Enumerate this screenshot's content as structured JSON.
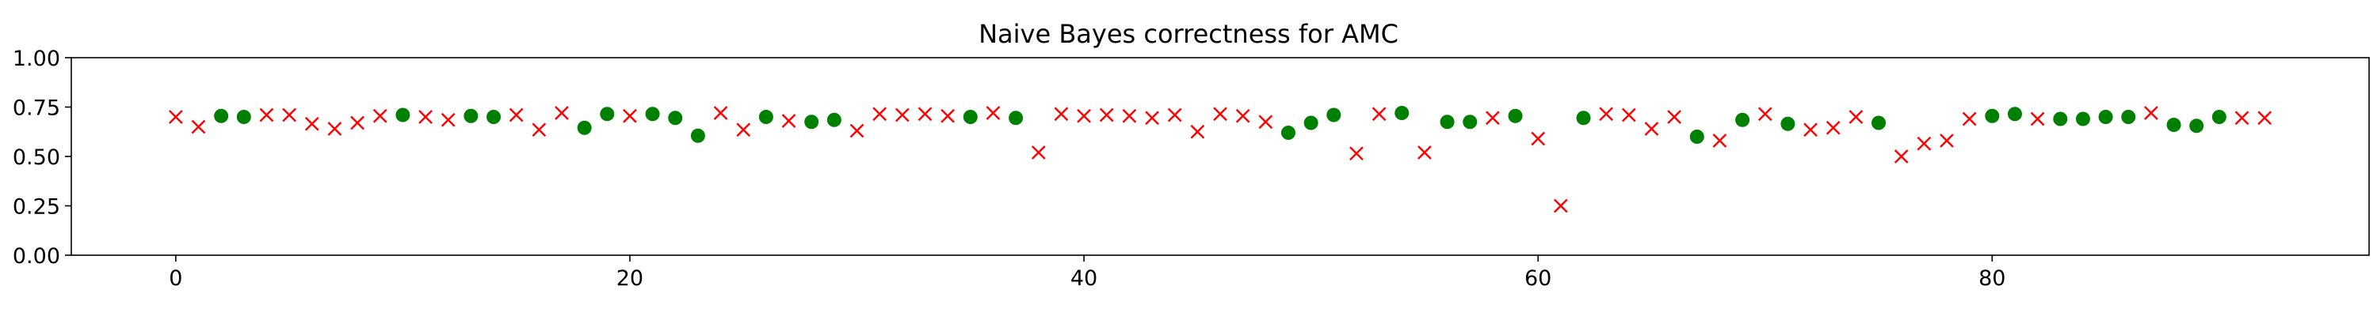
{
  "chart_data": {
    "type": "scatter",
    "title": "Naive Bayes correctness for AMC",
    "xlabel": "",
    "ylabel": "",
    "xlim": [
      -4.6,
      96.6
    ],
    "ylim": [
      0,
      1
    ],
    "x_ticks": [
      0,
      20,
      40,
      60,
      80
    ],
    "x_tick_labels": [
      "0",
      "20",
      "40",
      "60",
      "80"
    ],
    "y_ticks": [
      0,
      0.25,
      0.5,
      0.75,
      1.0
    ],
    "y_tick_labels": [
      "0.00",
      "0.25",
      "0.50",
      "0.75",
      "1.00"
    ],
    "grid": false,
    "legend": "none",
    "colors": {
      "correct": "#008000",
      "incorrect": "#ff0000"
    },
    "markers": {
      "correct": "circle",
      "incorrect": "x"
    },
    "points": [
      {
        "x": 0,
        "y": 0.7,
        "correct": false
      },
      {
        "x": 1,
        "y": 0.65,
        "correct": false
      },
      {
        "x": 2,
        "y": 0.705,
        "correct": true
      },
      {
        "x": 3,
        "y": 0.7,
        "correct": true
      },
      {
        "x": 4,
        "y": 0.71,
        "correct": false
      },
      {
        "x": 5,
        "y": 0.71,
        "correct": false
      },
      {
        "x": 6,
        "y": 0.665,
        "correct": false
      },
      {
        "x": 7,
        "y": 0.64,
        "correct": false
      },
      {
        "x": 8,
        "y": 0.67,
        "correct": false
      },
      {
        "x": 9,
        "y": 0.705,
        "correct": false
      },
      {
        "x": 10,
        "y": 0.71,
        "correct": true
      },
      {
        "x": 11,
        "y": 0.7,
        "correct": false
      },
      {
        "x": 12,
        "y": 0.685,
        "correct": false
      },
      {
        "x": 13,
        "y": 0.705,
        "correct": true
      },
      {
        "x": 14,
        "y": 0.7,
        "correct": true
      },
      {
        "x": 15,
        "y": 0.71,
        "correct": false
      },
      {
        "x": 16,
        "y": 0.635,
        "correct": false
      },
      {
        "x": 17,
        "y": 0.72,
        "correct": false
      },
      {
        "x": 18,
        "y": 0.645,
        "correct": true
      },
      {
        "x": 19,
        "y": 0.715,
        "correct": true
      },
      {
        "x": 20,
        "y": 0.705,
        "correct": false
      },
      {
        "x": 21,
        "y": 0.715,
        "correct": true
      },
      {
        "x": 22,
        "y": 0.695,
        "correct": true
      },
      {
        "x": 23,
        "y": 0.605,
        "correct": true
      },
      {
        "x": 24,
        "y": 0.72,
        "correct": false
      },
      {
        "x": 25,
        "y": 0.635,
        "correct": false
      },
      {
        "x": 26,
        "y": 0.7,
        "correct": true
      },
      {
        "x": 27,
        "y": 0.68,
        "correct": false
      },
      {
        "x": 28,
        "y": 0.675,
        "correct": true
      },
      {
        "x": 29,
        "y": 0.685,
        "correct": true
      },
      {
        "x": 30,
        "y": 0.63,
        "correct": false
      },
      {
        "x": 31,
        "y": 0.715,
        "correct": false
      },
      {
        "x": 32,
        "y": 0.71,
        "correct": false
      },
      {
        "x": 33,
        "y": 0.715,
        "correct": false
      },
      {
        "x": 34,
        "y": 0.705,
        "correct": false
      },
      {
        "x": 35,
        "y": 0.7,
        "correct": true
      },
      {
        "x": 36,
        "y": 0.72,
        "correct": false
      },
      {
        "x": 37,
        "y": 0.695,
        "correct": true
      },
      {
        "x": 38,
        "y": 0.52,
        "correct": false
      },
      {
        "x": 39,
        "y": 0.715,
        "correct": false
      },
      {
        "x": 40,
        "y": 0.705,
        "correct": false
      },
      {
        "x": 41,
        "y": 0.71,
        "correct": false
      },
      {
        "x": 42,
        "y": 0.705,
        "correct": false
      },
      {
        "x": 43,
        "y": 0.695,
        "correct": false
      },
      {
        "x": 44,
        "y": 0.71,
        "correct": false
      },
      {
        "x": 45,
        "y": 0.625,
        "correct": false
      },
      {
        "x": 46,
        "y": 0.715,
        "correct": false
      },
      {
        "x": 47,
        "y": 0.705,
        "correct": false
      },
      {
        "x": 48,
        "y": 0.675,
        "correct": false
      },
      {
        "x": 49,
        "y": 0.62,
        "correct": true
      },
      {
        "x": 50,
        "y": 0.67,
        "correct": true
      },
      {
        "x": 51,
        "y": 0.71,
        "correct": true
      },
      {
        "x": 52,
        "y": 0.515,
        "correct": false
      },
      {
        "x": 53,
        "y": 0.715,
        "correct": false
      },
      {
        "x": 54,
        "y": 0.72,
        "correct": true
      },
      {
        "x": 55,
        "y": 0.52,
        "correct": false
      },
      {
        "x": 56,
        "y": 0.675,
        "correct": true
      },
      {
        "x": 57,
        "y": 0.675,
        "correct": true
      },
      {
        "x": 58,
        "y": 0.695,
        "correct": false
      },
      {
        "x": 59,
        "y": 0.705,
        "correct": true
      },
      {
        "x": 60,
        "y": 0.59,
        "correct": false
      },
      {
        "x": 61,
        "y": 0.25,
        "correct": false
      },
      {
        "x": 62,
        "y": 0.695,
        "correct": true
      },
      {
        "x": 63,
        "y": 0.715,
        "correct": false
      },
      {
        "x": 64,
        "y": 0.71,
        "correct": false
      },
      {
        "x": 65,
        "y": 0.64,
        "correct": false
      },
      {
        "x": 66,
        "y": 0.7,
        "correct": false
      },
      {
        "x": 67,
        "y": 0.6,
        "correct": true
      },
      {
        "x": 68,
        "y": 0.58,
        "correct": false
      },
      {
        "x": 69,
        "y": 0.685,
        "correct": true
      },
      {
        "x": 70,
        "y": 0.715,
        "correct": false
      },
      {
        "x": 71,
        "y": 0.665,
        "correct": true
      },
      {
        "x": 72,
        "y": 0.635,
        "correct": false
      },
      {
        "x": 73,
        "y": 0.645,
        "correct": false
      },
      {
        "x": 74,
        "y": 0.7,
        "correct": false
      },
      {
        "x": 75,
        "y": 0.67,
        "correct": true
      },
      {
        "x": 76,
        "y": 0.5,
        "correct": false
      },
      {
        "x": 77,
        "y": 0.565,
        "correct": false
      },
      {
        "x": 78,
        "y": 0.58,
        "correct": false
      },
      {
        "x": 79,
        "y": 0.69,
        "correct": false
      },
      {
        "x": 80,
        "y": 0.705,
        "correct": true
      },
      {
        "x": 81,
        "y": 0.715,
        "correct": true
      },
      {
        "x": 82,
        "y": 0.69,
        "correct": false
      },
      {
        "x": 83,
        "y": 0.69,
        "correct": true
      },
      {
        "x": 84,
        "y": 0.69,
        "correct": true
      },
      {
        "x": 85,
        "y": 0.7,
        "correct": true
      },
      {
        "x": 86,
        "y": 0.7,
        "correct": true
      },
      {
        "x": 87,
        "y": 0.72,
        "correct": false
      },
      {
        "x": 88,
        "y": 0.66,
        "correct": true
      },
      {
        "x": 89,
        "y": 0.655,
        "correct": true
      },
      {
        "x": 90,
        "y": 0.7,
        "correct": true
      },
      {
        "x": 91,
        "y": 0.695,
        "correct": false
      },
      {
        "x": 92,
        "y": 0.695,
        "correct": false
      }
    ]
  }
}
